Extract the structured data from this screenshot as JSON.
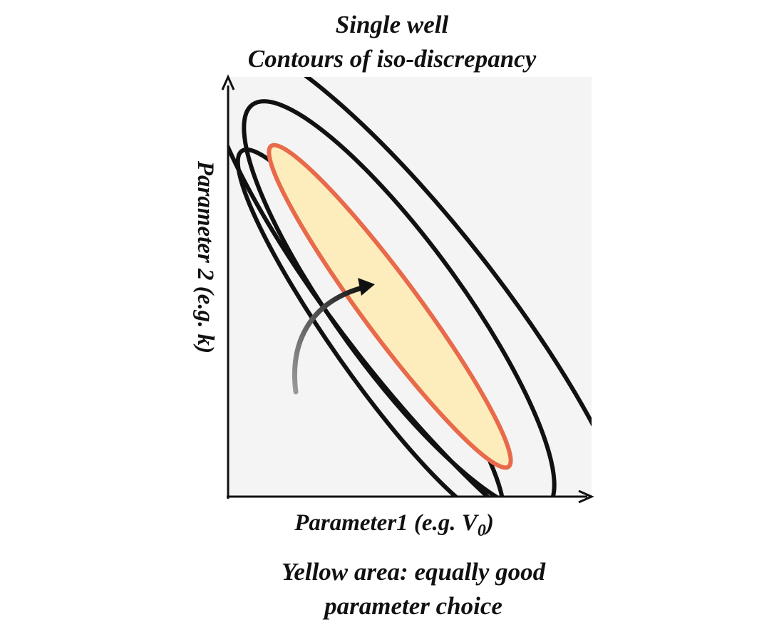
{
  "title": {
    "line1": "Single well",
    "line2": "Contours of iso-discrepancy"
  },
  "axes": {
    "x_label_main": "Parameter1  (e.g. V",
    "x_label_subscript": "0",
    "x_label_close": ")",
    "y_label": "Parameter 2 (e.g. k)"
  },
  "caption": {
    "line1": "Yellow area: equally good",
    "line2": "parameter choice"
  },
  "colors": {
    "plot_background": "#f4f4f4",
    "contour_stroke": "#111111",
    "optimal_fill": "#fdedbd",
    "optimal_stroke": "#e86a4a"
  },
  "icons": {
    "search_arrow": "curved-arrow-icon"
  }
}
